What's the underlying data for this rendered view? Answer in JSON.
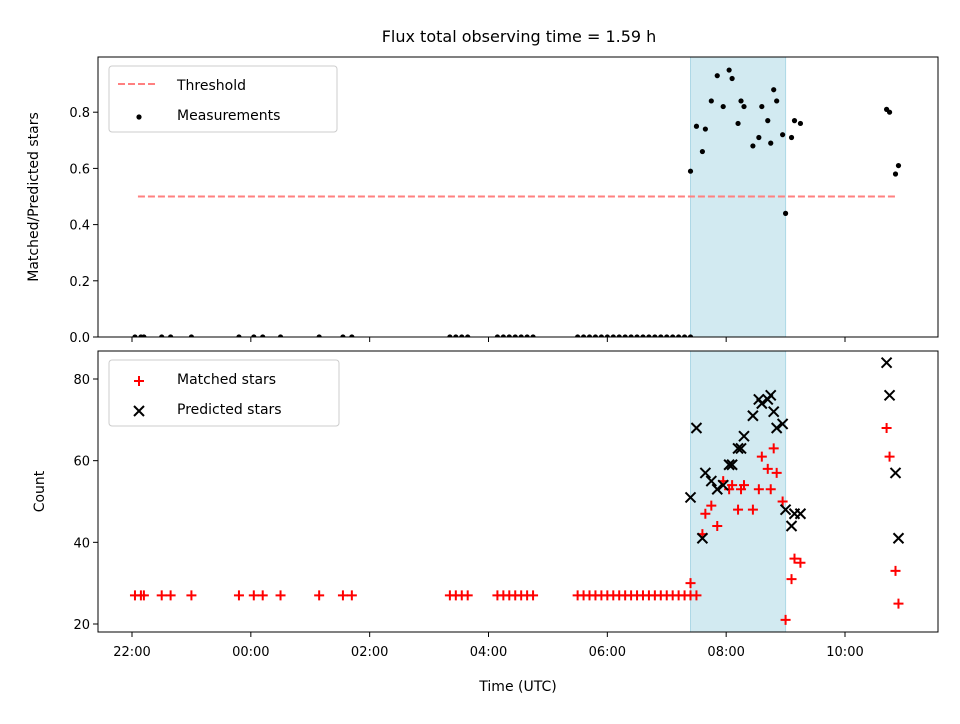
{
  "title": "Flux total observing time = 1.59 h",
  "colors": {
    "threshold": "#ff8080",
    "measurements": "#000000",
    "matched": "#ff0000",
    "predicted": "#000000",
    "window": "#add8e6"
  },
  "chart_data": [
    {
      "type": "scatter",
      "ylabel": "Matched/Predicted stars",
      "ylim": [
        0,
        1.0
      ],
      "xlim": [
        21.5,
        11.6
      ],
      "yticks": [
        {
          "v": 0.0,
          "label": "0.0"
        },
        {
          "v": 0.2,
          "label": "0.2"
        },
        {
          "v": 0.4,
          "label": "0.4"
        },
        {
          "v": 0.6,
          "label": "0.6"
        },
        {
          "v": 0.8,
          "label": "0.8"
        }
      ],
      "shaded_window": [
        7.4,
        9.0
      ],
      "legend": {
        "placement": "upper left",
        "entries": [
          "Threshold",
          "Measurements"
        ]
      },
      "series": [
        {
          "name": "Threshold",
          "kind": "dashed-line",
          "x": [
            22.1,
            10.85
          ],
          "y": [
            0.5,
            0.5
          ]
        },
        {
          "name": "Measurements",
          "kind": "dots",
          "x": [
            22.05,
            22.15,
            22.2,
            22.5,
            22.65,
            23.0,
            23.8,
            24.05,
            24.2,
            24.5,
            25.15,
            25.55,
            25.7,
            27.35,
            27.45,
            27.55,
            27.65,
            28.15,
            28.25,
            28.35,
            28.45,
            28.55,
            28.65,
            28.75,
            29.5,
            29.6,
            29.7,
            29.8,
            29.9,
            30.0,
            30.1,
            30.2,
            30.3,
            30.4,
            30.5,
            30.6,
            30.7,
            30.8,
            30.9,
            31.0,
            31.1,
            31.2,
            31.3,
            31.4,
            7.4,
            7.5,
            7.6,
            7.65,
            7.75,
            7.85,
            7.95,
            8.05,
            8.1,
            8.2,
            8.25,
            8.3,
            8.45,
            8.55,
            8.6,
            8.7,
            8.75,
            8.8,
            8.85,
            8.95,
            9.0,
            9.1,
            9.15,
            9.25,
            10.7,
            10.75,
            10.85,
            10.9
          ],
          "y": [
            0,
            0,
            0,
            0,
            0,
            0,
            0,
            0,
            0,
            0,
            0,
            0,
            0,
            0,
            0,
            0,
            0,
            0,
            0,
            0,
            0,
            0,
            0,
            0,
            0,
            0,
            0,
            0,
            0,
            0,
            0,
            0,
            0,
            0,
            0,
            0,
            0,
            0,
            0,
            0,
            0,
            0,
            0,
            0,
            0.59,
            0.75,
            0.66,
            0.74,
            0.84,
            0.93,
            0.82,
            0.95,
            0.92,
            0.76,
            0.84,
            0.82,
            0.68,
            0.71,
            0.82,
            0.77,
            0.69,
            0.88,
            0.84,
            0.72,
            0.44,
            0.71,
            0.77,
            0.76,
            0.81,
            0.8,
            0.58,
            0.61
          ]
        }
      ]
    },
    {
      "type": "scatter",
      "ylabel": "Count",
      "xlabel": "Time (UTC)",
      "ylim": [
        18,
        88
      ],
      "xlim": [
        21.5,
        11.6
      ],
      "yticks": [
        {
          "v": 20,
          "label": "20"
        },
        {
          "v": 40,
          "label": "40"
        },
        {
          "v": 60,
          "label": "60"
        },
        {
          "v": 80,
          "label": "80"
        }
      ],
      "xticks": [
        {
          "v": 22,
          "label": "22:00"
        },
        {
          "v": 0,
          "label": "00:00"
        },
        {
          "v": 2,
          "label": "02:00"
        },
        {
          "v": 4,
          "label": "04:00"
        },
        {
          "v": 6,
          "label": "06:00"
        },
        {
          "v": 8,
          "label": "08:00"
        },
        {
          "v": 10,
          "label": "10:00"
        }
      ],
      "shaded_window": [
        7.4,
        9.0
      ],
      "legend": {
        "placement": "upper left",
        "entries": [
          "Matched stars",
          "Predicted stars"
        ]
      },
      "series": [
        {
          "name": "Matched stars",
          "kind": "plus",
          "x": [
            22.05,
            22.15,
            22.2,
            22.5,
            22.65,
            23.0,
            23.8,
            24.05,
            24.2,
            24.5,
            25.15,
            25.55,
            25.7,
            27.35,
            27.45,
            27.55,
            27.65,
            28.15,
            28.25,
            28.35,
            28.45,
            28.55,
            28.65,
            28.75,
            29.5,
            29.6,
            29.7,
            29.8,
            29.9,
            30.0,
            30.1,
            30.2,
            30.3,
            30.4,
            30.5,
            30.6,
            30.7,
            30.8,
            30.9,
            31.0,
            31.1,
            31.2,
            31.3,
            31.4,
            7.4,
            7.5,
            7.6,
            7.65,
            7.75,
            7.85,
            7.95,
            8.05,
            8.1,
            8.2,
            8.25,
            8.3,
            8.45,
            8.55,
            8.6,
            8.7,
            8.75,
            8.8,
            8.85,
            8.95,
            9.0,
            9.1,
            9.15,
            9.25,
            10.7,
            10.75,
            10.85,
            10.9
          ],
          "y": [
            27,
            27,
            27,
            27,
            27,
            27,
            27,
            27,
            27,
            27,
            27,
            27,
            27,
            27,
            27,
            27,
            27,
            27,
            27,
            27,
            27,
            27,
            27,
            27,
            27,
            27,
            27,
            27,
            27,
            27,
            27,
            27,
            27,
            27,
            27,
            27,
            27,
            27,
            27,
            27,
            27,
            27,
            27,
            27,
            30,
            27,
            42,
            47,
            49,
            44,
            55,
            53,
            54,
            48,
            53,
            54,
            48,
            53,
            61,
            58,
            53,
            63,
            57,
            50,
            21,
            31,
            36,
            35,
            68,
            61,
            33,
            25
          ]
        },
        {
          "name": "Predicted stars",
          "kind": "x",
          "x": [
            7.4,
            7.5,
            7.6,
            7.65,
            7.75,
            7.85,
            7.95,
            8.05,
            8.1,
            8.2,
            8.25,
            8.3,
            8.45,
            8.55,
            8.6,
            8.7,
            8.75,
            8.8,
            8.85,
            8.95,
            9.0,
            9.1,
            9.15,
            9.25,
            10.7,
            10.75,
            10.85,
            10.9
          ],
          "y": [
            51,
            68,
            41,
            57,
            55,
            53,
            54,
            59,
            59,
            63,
            63,
            66,
            71,
            75,
            74,
            75,
            76,
            72,
            68,
            69,
            48,
            44,
            47,
            47,
            84,
            76,
            57,
            41
          ]
        }
      ]
    }
  ]
}
